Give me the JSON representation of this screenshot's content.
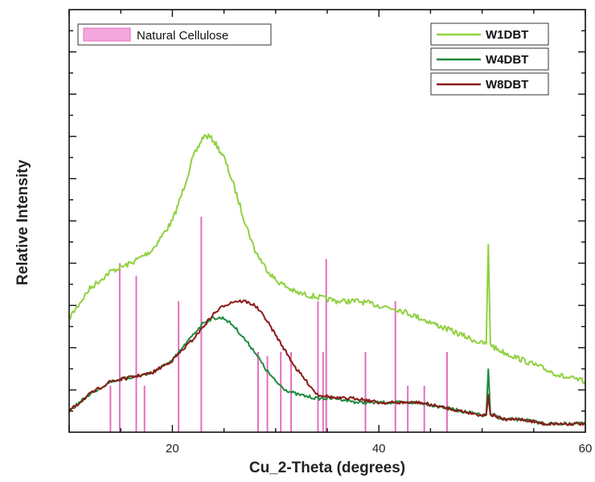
{
  "chart_data": {
    "type": "line",
    "title": "",
    "xlabel": "Cu_2-Theta (degrees)",
    "ylabel": "Relative Intensity",
    "xlim": [
      10,
      60
    ],
    "ylim": [
      0,
      1
    ],
    "x_ticks": [
      20,
      40,
      60
    ],
    "y_tick_labels": "none",
    "grid": false,
    "legend_placement": [
      "top-left",
      "top-right"
    ],
    "reference_pattern": {
      "name": "Natural Cellulose",
      "color": "#e36fc0",
      "type": "stick",
      "peaks": [
        {
          "x": 14.0,
          "y": 0.11
        },
        {
          "x": 14.9,
          "y": 0.4
        },
        {
          "x": 16.5,
          "y": 0.37
        },
        {
          "x": 17.3,
          "y": 0.11
        },
        {
          "x": 20.6,
          "y": 0.31
        },
        {
          "x": 22.8,
          "y": 0.51
        },
        {
          "x": 28.3,
          "y": 0.19
        },
        {
          "x": 29.2,
          "y": 0.18
        },
        {
          "x": 30.5,
          "y": 0.19
        },
        {
          "x": 31.5,
          "y": 0.19
        },
        {
          "x": 34.1,
          "y": 0.31
        },
        {
          "x": 34.6,
          "y": 0.19
        },
        {
          "x": 34.9,
          "y": 0.41
        },
        {
          "x": 38.7,
          "y": 0.19
        },
        {
          "x": 41.6,
          "y": 0.31
        },
        {
          "x": 42.8,
          "y": 0.11
        },
        {
          "x": 44.4,
          "y": 0.11
        },
        {
          "x": 46.6,
          "y": 0.19
        }
      ]
    },
    "series": [
      {
        "name": "W1DBT",
        "color": "#8fd13f",
        "x": [
          10,
          12,
          14,
          16,
          18,
          20,
          21,
          22,
          23,
          23.5,
          24,
          25,
          26,
          27,
          28,
          29,
          30,
          32,
          34,
          36,
          38,
          40,
          42,
          44,
          46,
          48,
          50,
          50.4,
          50.6,
          50.8,
          51.2,
          52,
          54,
          56,
          58,
          60
        ],
        "y": [
          0.27,
          0.34,
          0.38,
          0.4,
          0.43,
          0.5,
          0.57,
          0.65,
          0.7,
          0.7,
          0.69,
          0.65,
          0.58,
          0.5,
          0.43,
          0.39,
          0.36,
          0.33,
          0.32,
          0.31,
          0.31,
          0.3,
          0.29,
          0.27,
          0.25,
          0.23,
          0.21,
          0.21,
          0.44,
          0.21,
          0.2,
          0.19,
          0.17,
          0.15,
          0.13,
          0.12
        ]
      },
      {
        "name": "W4DBT",
        "color": "#1e8a3e",
        "x": [
          10,
          12,
          14,
          16,
          18,
          20,
          22,
          23,
          24,
          25,
          26,
          27,
          28,
          29,
          30,
          31,
          32,
          34,
          36,
          38,
          40,
          42,
          44,
          46,
          48,
          50,
          50.4,
          50.6,
          50.8,
          51.2,
          52,
          54,
          56,
          58,
          60
        ],
        "y": [
          0.05,
          0.09,
          0.12,
          0.13,
          0.14,
          0.17,
          0.23,
          0.26,
          0.27,
          0.27,
          0.25,
          0.22,
          0.19,
          0.15,
          0.12,
          0.1,
          0.09,
          0.08,
          0.08,
          0.07,
          0.07,
          0.07,
          0.07,
          0.06,
          0.05,
          0.04,
          0.04,
          0.15,
          0.04,
          0.04,
          0.03,
          0.03,
          0.02,
          0.02,
          0.02
        ]
      },
      {
        "name": "W8DBT",
        "color": "#8b1a16",
        "x": [
          10,
          12,
          14,
          16,
          18,
          20,
          22,
          24,
          25,
          26,
          27,
          28,
          29,
          30,
          31,
          32,
          33,
          34,
          36,
          38,
          40,
          42,
          44,
          46,
          48,
          50,
          50.4,
          50.6,
          50.8,
          51.2,
          52,
          54,
          56,
          58,
          60
        ],
        "y": [
          0.05,
          0.09,
          0.12,
          0.13,
          0.14,
          0.17,
          0.22,
          0.28,
          0.3,
          0.31,
          0.31,
          0.3,
          0.27,
          0.23,
          0.19,
          0.15,
          0.12,
          0.09,
          0.08,
          0.08,
          0.07,
          0.07,
          0.07,
          0.06,
          0.05,
          0.04,
          0.04,
          0.09,
          0.04,
          0.04,
          0.03,
          0.03,
          0.02,
          0.02,
          0.02
        ]
      }
    ]
  }
}
